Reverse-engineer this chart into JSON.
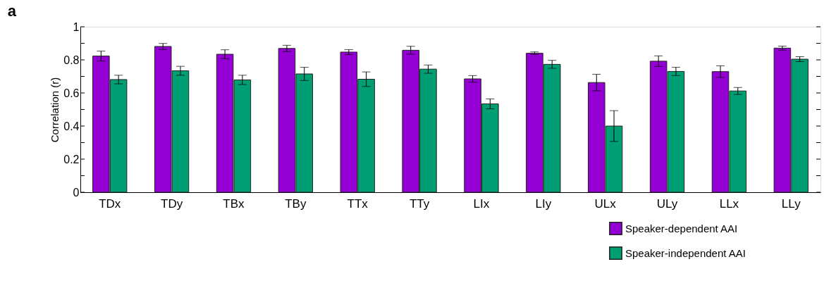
{
  "chart_data": {
    "type": "bar",
    "title": "a",
    "ylabel": "Correlation (r)",
    "categories": [
      "TDx",
      "TDy",
      "TBx",
      "TBy",
      "TTx",
      "TTy",
      "LIx",
      "LIy",
      "ULx",
      "ULy",
      "LLx",
      "LLy"
    ],
    "series": [
      {
        "name": "Speaker-dependent AAI",
        "color": "#9400d3",
        "values": [
          0.823,
          0.881,
          0.834,
          0.869,
          0.847,
          0.858,
          0.685,
          0.84,
          0.663,
          0.792,
          0.729,
          0.871
        ],
        "errors": [
          0.03,
          0.018,
          0.027,
          0.019,
          0.015,
          0.024,
          0.02,
          0.008,
          0.05,
          0.032,
          0.035,
          0.012
        ]
      },
      {
        "name": "Speaker-independent AAI",
        "color": "#009e73",
        "values": [
          0.681,
          0.734,
          0.679,
          0.715,
          0.683,
          0.744,
          0.534,
          0.773,
          0.4,
          0.73,
          0.612,
          0.804
        ],
        "errors": [
          0.026,
          0.027,
          0.028,
          0.04,
          0.044,
          0.025,
          0.03,
          0.024,
          0.093,
          0.025,
          0.021,
          0.015
        ]
      }
    ],
    "ylim": [
      0,
      1
    ],
    "yticks": [
      0,
      {
        "value": 0.1,
        "label": null
      },
      0.2,
      {
        "value": 0.3,
        "label": null
      },
      0.4,
      {
        "value": 0.5,
        "label": null
      },
      0.6,
      {
        "value": 0.7,
        "label": null
      },
      0.8,
      {
        "value": 0.9,
        "label": null
      },
      1
    ],
    "grid": false,
    "legend": "bottom right"
  }
}
